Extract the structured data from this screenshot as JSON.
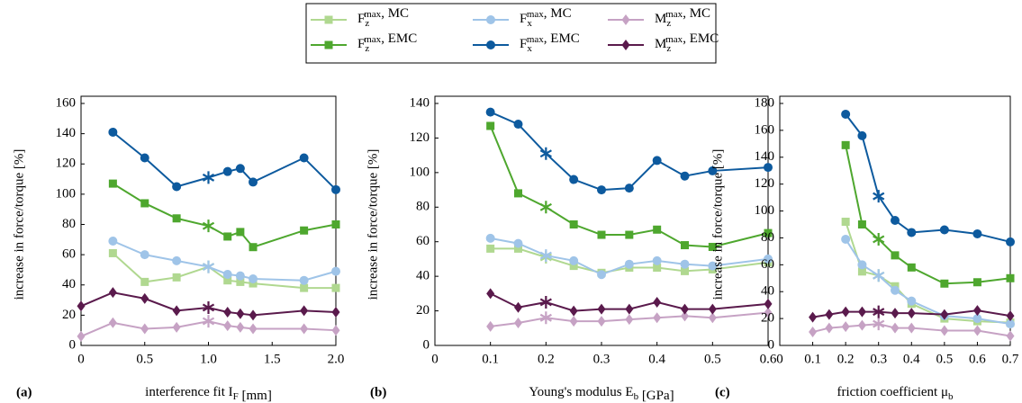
{
  "chart_data": [
    {
      "type": "line",
      "panel_label": "(a)",
      "xlabel": "interference fit I_F [mm]",
      "ylabel": "increase in force/torque [%]",
      "x": [
        0,
        0.25,
        0.5,
        0.75,
        1,
        1.15,
        1.25,
        1.35,
        1.75,
        2
      ],
      "xlim": [
        0,
        2
      ],
      "xticks": [
        0,
        {
          "value": 0.5,
          "label": "0.5"
        },
        {
          "value": 1,
          "label": "1.0"
        },
        {
          "value": 1.5,
          "label": "1.5"
        },
        {
          "value": 2,
          "label": "2.0"
        }
      ],
      "ylim": [
        0,
        160
      ],
      "yticks": [
        0,
        20,
        40,
        60,
        80,
        100,
        120,
        140,
        160
      ],
      "star_x": 1,
      "series": [
        {
          "name": "F_z^max, MC",
          "color": "#b0d890",
          "marker": "square",
          "values": [
            null,
            61,
            42,
            45,
            52,
            43,
            42,
            41,
            38,
            38
          ]
        },
        {
          "name": "F_x^max, MC",
          "color": "#9fc4e8",
          "marker": "circle",
          "values": [
            null,
            69,
            60,
            56,
            52,
            47,
            46,
            44,
            43,
            49
          ]
        },
        {
          "name": "M_z^max, MC",
          "color": "#c6a2c4",
          "marker": "diamond",
          "values": [
            6,
            15,
            11,
            12,
            16,
            13,
            12,
            11,
            11,
            10
          ]
        },
        {
          "name": "F_z^max, EMC",
          "color": "#4ea72e",
          "marker": "square",
          "values": [
            null,
            107,
            94,
            84,
            79,
            72,
            75,
            65,
            76,
            80
          ]
        },
        {
          "name": "F_x^max, EMC",
          "color": "#0d5a9e",
          "marker": "circle",
          "values": [
            null,
            141,
            124,
            105,
            111,
            115,
            117,
            108,
            124,
            103
          ]
        },
        {
          "name": "M_z^max, EMC",
          "color": "#5a1a4c",
          "marker": "diamond",
          "values": [
            26,
            35,
            31,
            23,
            25,
            22,
            21,
            20,
            23,
            22
          ]
        }
      ]
    },
    {
      "type": "line",
      "panel_label": "(b)",
      "xlabel": "Young's modulus E_b [GPa]",
      "ylabel": "increase in force/torque [%]",
      "x": [
        0.1,
        0.15,
        0.2,
        0.25,
        0.3,
        0.35,
        0.4,
        0.45,
        0.5,
        0.6
      ],
      "xlim": [
        0,
        0.6
      ],
      "xticks": [
        0,
        0.1,
        0.2,
        0.3,
        0.4,
        0.5,
        0.6
      ],
      "ylim": [
        0,
        140
      ],
      "yticks": [
        0,
        20,
        40,
        60,
        80,
        100,
        120,
        140
      ],
      "star_x": 0.2,
      "series": [
        {
          "color": "#b0d890",
          "marker": "square",
          "values": [
            56,
            56,
            51,
            46,
            42,
            45,
            45,
            43,
            44,
            48
          ]
        },
        {
          "color": "#9fc4e8",
          "marker": "circle",
          "values": [
            62,
            59,
            52,
            49,
            41,
            47,
            49,
            47,
            46,
            50
          ]
        },
        {
          "color": "#c6a2c4",
          "marker": "diamond",
          "values": [
            11,
            13,
            16,
            14,
            14,
            15,
            16,
            17,
            16,
            19
          ]
        },
        {
          "color": "#4ea72e",
          "marker": "square",
          "values": [
            127,
            88,
            80,
            70,
            64,
            64,
            67,
            58,
            57,
            65
          ]
        },
        {
          "color": "#0d5a9e",
          "marker": "circle",
          "values": [
            135,
            128,
            111,
            96,
            90,
            91,
            107,
            98,
            101,
            103
          ]
        },
        {
          "color": "#5a1a4c",
          "marker": "diamond",
          "values": [
            30,
            22,
            25,
            20,
            21,
            21,
            25,
            21,
            21,
            24
          ]
        }
      ]
    },
    {
      "type": "line",
      "panel_label": "(c)",
      "xlabel": "friction coefficient μ_b",
      "ylabel": "increase in force/torque [%]",
      "x": [
        0.1,
        0.15,
        0.2,
        0.25,
        0.3,
        0.35,
        0.4,
        0.5,
        0.6,
        0.7
      ],
      "xlim": [
        0,
        0.7
      ],
      "xticks": [
        0,
        0.1,
        0.2,
        0.3,
        0.4,
        0.5,
        0.6,
        0.7
      ],
      "ylim": [
        0,
        180
      ],
      "yticks": [
        0,
        20,
        40,
        60,
        80,
        100,
        120,
        140,
        160,
        180
      ],
      "star_x": 0.3,
      "series": [
        {
          "color": "#b0d890",
          "marker": "square",
          "values": [
            null,
            null,
            92,
            55,
            52,
            44,
            31,
            20,
            18,
            17
          ]
        },
        {
          "color": "#9fc4e8",
          "marker": "circle",
          "values": [
            null,
            null,
            79,
            60,
            52,
            41,
            33,
            22,
            20,
            16
          ]
        },
        {
          "color": "#c6a2c4",
          "marker": "diamond",
          "values": [
            10,
            13,
            14,
            15,
            16,
            13,
            13,
            11,
            11,
            7
          ]
        },
        {
          "color": "#4ea72e",
          "marker": "square",
          "values": [
            null,
            null,
            149,
            90,
            79,
            67,
            58,
            46,
            47,
            50
          ]
        },
        {
          "color": "#0d5a9e",
          "marker": "circle",
          "values": [
            null,
            null,
            172,
            156,
            111,
            93,
            84,
            86,
            83,
            77
          ]
        },
        {
          "color": "#5a1a4c",
          "marker": "diamond",
          "values": [
            21,
            23,
            25,
            25,
            25,
            24,
            24,
            23,
            26,
            22
          ]
        }
      ]
    }
  ]
}
